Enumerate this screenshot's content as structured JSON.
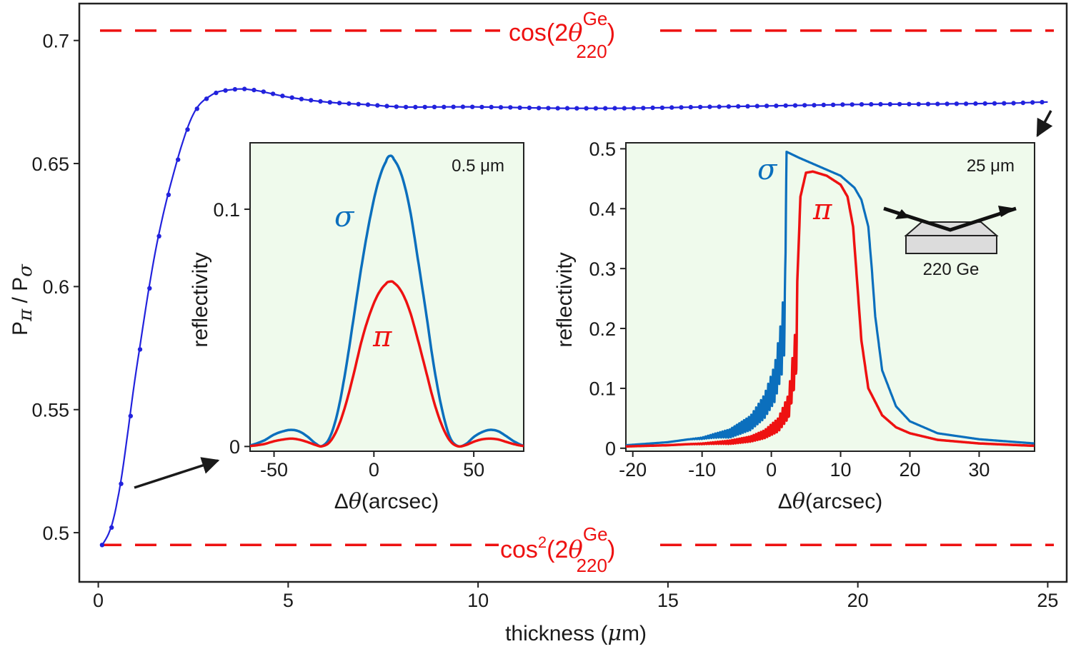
{
  "colors": {
    "blue": "#2222dd",
    "sigma_blue": "#0b6fbd",
    "red": "#ee1111",
    "inset_bg": "#effaec",
    "frame": "#222222"
  },
  "main_labels": {
    "ylabel_p1": "P",
    "ylabel_pi": "π",
    "ylabel_slash": " / P",
    "ylabel_sigma": "σ",
    "xlabel_pre": "thickness (",
    "xlabel_mu": "μ",
    "xlabel_post": "m)",
    "top_ref_pre": "cos(2",
    "top_ref_theta": "θ",
    "top_ref_sup": "Ge",
    "top_ref_sub": "220",
    "top_ref_close": ")",
    "bot_ref_pre": "cos",
    "bot_ref_sq": "2",
    "bot_ref_mid": "(2",
    "bot_ref_theta": "θ",
    "bot_ref_sup": "Ge",
    "bot_ref_sub": "220",
    "bot_ref_close": ")"
  },
  "inset1_labels": {
    "ylabel": "reflectivity",
    "xlabel_delta": "Δ",
    "xlabel_theta": "θ",
    "xlabel_rest": "(arcsec)",
    "thickness": "0.5 μm",
    "sigma": "σ",
    "pi": "π"
  },
  "inset2_labels": {
    "ylabel": "reflectivity",
    "xlabel_delta": "Δ",
    "xlabel_theta": "θ",
    "xlabel_rest": "(arcsec)",
    "thickness": "25 μm",
    "sigma": "σ",
    "pi": "π",
    "crystal": "220 Ge"
  },
  "chart_data": [
    {
      "type": "line",
      "name": "main",
      "title": "",
      "xlabel": "thickness (μm)",
      "ylabel": "Pπ / Pσ",
      "xlim": [
        -0.5,
        25.5
      ],
      "ylim": [
        0.48,
        0.715
      ],
      "xticks": [
        0,
        5,
        10,
        15,
        20,
        25
      ],
      "yticks": [
        0.5,
        0.55,
        0.6,
        0.65,
        0.7
      ],
      "x": [
        0.1,
        0.5,
        1.0,
        1.5,
        2.0,
        2.5,
        3.0,
        3.5,
        4.0,
        5.0,
        6.0,
        7.0,
        8.0,
        9.0,
        10.0,
        12.0,
        14.0,
        16.0,
        18.0,
        20.0,
        22.0,
        24.0,
        25.0
      ],
      "series": [
        {
          "name": "Pπ/Pσ",
          "values": [
            0.495,
            0.513,
            0.566,
            0.614,
            0.647,
            0.67,
            0.678,
            0.68,
            0.68,
            0.677,
            0.675,
            0.674,
            0.673,
            0.673,
            0.673,
            0.6725,
            0.6725,
            0.673,
            0.6735,
            0.674,
            0.6742,
            0.6745,
            0.675
          ]
        }
      ],
      "reference_lines": [
        {
          "name": "cos(2θ220 Ge)",
          "y": 0.704
        },
        {
          "name": "cos2(2θ220 Ge)",
          "y": 0.495
        }
      ]
    },
    {
      "type": "line",
      "name": "inset 0.5 μm",
      "xlabel": "Δθ(arcsec)",
      "ylabel": "reflectivity",
      "xlim": [
        -62,
        75
      ],
      "ylim": [
        -0.002,
        0.128
      ],
      "xticks": [
        -50,
        0,
        50
      ],
      "yticks": [
        0,
        0.1
      ],
      "ytick_labels": [
        "0",
        "0.1"
      ],
      "x": [
        -62,
        -55,
        -50,
        -45,
        -41,
        -37,
        -33,
        -29,
        -26,
        -22,
        -18,
        -14,
        -10,
        -6,
        -2,
        2,
        6,
        8,
        10,
        14,
        18,
        22,
        26,
        30,
        34,
        38,
        42,
        46,
        50,
        54,
        58,
        62,
        66,
        70,
        75
      ],
      "series": [
        {
          "name": "σ",
          "values": [
            0.0005,
            0.0025,
            0.005,
            0.0065,
            0.007,
            0.0062,
            0.004,
            0.0012,
            0.0002,
            0.004,
            0.015,
            0.033,
            0.055,
            0.077,
            0.096,
            0.111,
            0.12,
            0.1225,
            0.121,
            0.114,
            0.1,
            0.079,
            0.057,
            0.034,
            0.016,
            0.004,
            0.0002,
            0.001,
            0.004,
            0.006,
            0.007,
            0.0065,
            0.0045,
            0.0022,
            0.0003
          ]
        },
        {
          "name": "π",
          "values": [
            0.0002,
            0.001,
            0.0022,
            0.003,
            0.0033,
            0.0028,
            0.0018,
            0.0006,
            0.0001,
            0.002,
            0.008,
            0.018,
            0.031,
            0.045,
            0.056,
            0.064,
            0.0685,
            0.0695,
            0.069,
            0.065,
            0.057,
            0.045,
            0.032,
            0.019,
            0.009,
            0.0025,
            0.0001,
            0.0006,
            0.002,
            0.003,
            0.0033,
            0.003,
            0.002,
            0.001,
            0.0002
          ]
        }
      ]
    },
    {
      "type": "line",
      "name": "inset 25 μm",
      "xlabel": "Δθ(arcsec)",
      "ylabel": "reflectivity",
      "xlim": [
        -21,
        38
      ],
      "ylim": [
        -0.005,
        0.51
      ],
      "xticks": [
        -20,
        -10,
        0,
        10,
        20,
        30
      ],
      "yticks": [
        0,
        0.1,
        0.2,
        0.3,
        0.4,
        0.5
      ],
      "ytick_labels": [
        "0",
        "0.1",
        "0.2",
        "0.3",
        "0.4",
        "0.5"
      ],
      "series": [
        {
          "name": "σ",
          "x": [
            -21,
            -15,
            -10,
            -6,
            -3,
            -1,
            0.5,
            1.5,
            2.0,
            2.2,
            4,
            6,
            8,
            10,
            12,
            13,
            14,
            14.5,
            15,
            16,
            18,
            20,
            24,
            30,
            38
          ],
          "values": [
            0.005,
            0.01,
            0.018,
            0.032,
            0.055,
            0.09,
            0.14,
            0.22,
            0.3,
            0.495,
            0.485,
            0.475,
            0.465,
            0.455,
            0.435,
            0.415,
            0.37,
            0.3,
            0.22,
            0.13,
            0.07,
            0.045,
            0.025,
            0.015,
            0.008
          ]
        },
        {
          "name": "π",
          "x": [
            -21,
            -15,
            -10,
            -6,
            -3,
            -1,
            1,
            2.5,
            3.5,
            4.2,
            5,
            6,
            8,
            10,
            11,
            11.8,
            12.5,
            13,
            14,
            16,
            18,
            20,
            24,
            30,
            38
          ],
          "values": [
            0.003,
            0.005,
            0.008,
            0.013,
            0.02,
            0.03,
            0.05,
            0.09,
            0.2,
            0.42,
            0.46,
            0.462,
            0.455,
            0.44,
            0.42,
            0.37,
            0.26,
            0.18,
            0.1,
            0.055,
            0.035,
            0.025,
            0.014,
            0.008,
            0.004
          ]
        }
      ]
    }
  ]
}
